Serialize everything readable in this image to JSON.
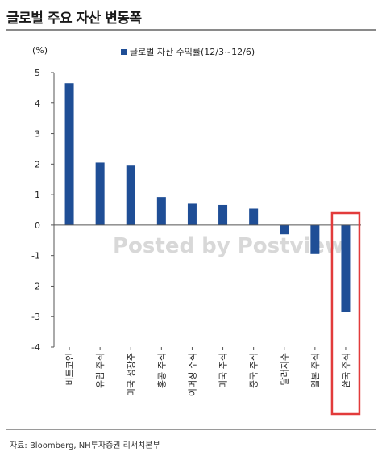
{
  "header": {
    "title": "글로벌 주요 자산 변동폭"
  },
  "footer": {
    "source": "자료: Bloomberg, NH투자증권 리서치본부"
  },
  "watermark": "Posted by Postview",
  "colors": {
    "bar": "#1f4e96",
    "highlight": "#e23b3b",
    "axis": "#555555"
  },
  "chart_data": {
    "type": "bar",
    "unit_label": "(%)",
    "legend": [
      {
        "name": "글로벌 자산 수익률(12/3~12/6)",
        "color": "#1f4e96"
      }
    ],
    "categories": [
      "비트코인",
      "유럽 주식",
      "미국 성장주",
      "홍콩 주식",
      "이머징 주식",
      "미국 주식",
      "중국 주식",
      "달러지수",
      "일본 주식",
      "한국 주식"
    ],
    "series": [
      {
        "name": "글로벌 자산 수익률(12/3~12/6)",
        "values": [
          4.65,
          2.05,
          1.95,
          0.92,
          0.7,
          0.66,
          0.54,
          -0.3,
          -0.95,
          -2.85
        ]
      }
    ],
    "ylim": [
      -4,
      5
    ],
    "yticks": [
      5,
      4,
      3,
      2,
      1,
      0,
      -1,
      -2,
      -3,
      -4
    ],
    "highlighted_category": "한국 주식"
  }
}
